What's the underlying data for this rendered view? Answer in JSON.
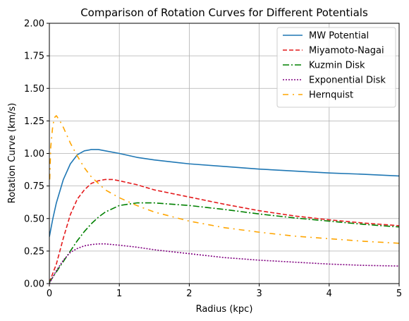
{
  "chart_data": {
    "type": "line",
    "title": "Comparison of Rotation Curves for Different Potentials",
    "xlabel": "Radius (kpc)",
    "ylabel": "Rotation Curve (km/s)",
    "xlim": [
      0,
      5
    ],
    "ylim": [
      0,
      2
    ],
    "xticks": [
      0,
      1,
      2,
      3,
      4,
      5
    ],
    "xtick_labels": [
      "0",
      "1",
      "2",
      "3",
      "4",
      "5"
    ],
    "yticks": [
      0,
      0.25,
      0.5,
      0.75,
      1.0,
      1.25,
      1.5,
      1.75,
      2.0
    ],
    "ytick_labels": [
      "0.00",
      "0.25",
      "0.50",
      "0.75",
      "1.00",
      "1.25",
      "1.50",
      "1.75",
      "2.00"
    ],
    "grid": true,
    "legend_position": "top-right",
    "series": [
      {
        "name": "MW Potential",
        "color": "#1f77b4",
        "style": "solid",
        "x": [
          0,
          0.05,
          0.1,
          0.2,
          0.3,
          0.4,
          0.5,
          0.6,
          0.65,
          0.7,
          0.8,
          1.0,
          1.25,
          1.5,
          2.0,
          2.5,
          3.0,
          3.5,
          4.0,
          4.5,
          5.0
        ],
        "y": [
          0.36,
          0.5,
          0.62,
          0.8,
          0.92,
          0.99,
          1.02,
          1.03,
          1.03,
          1.03,
          1.02,
          1.0,
          0.97,
          0.95,
          0.92,
          0.9,
          0.88,
          0.865,
          0.85,
          0.84,
          0.827
        ]
      },
      {
        "name": "Miyamoto-Nagai",
        "color": "#e41a1c",
        "style": "dashed",
        "x": [
          0,
          0.1,
          0.2,
          0.3,
          0.4,
          0.5,
          0.6,
          0.7,
          0.8,
          0.9,
          1.0,
          1.25,
          1.5,
          2.0,
          2.5,
          3.0,
          3.5,
          4.0,
          4.5,
          5.0
        ],
        "y": [
          0.01,
          0.15,
          0.35,
          0.53,
          0.65,
          0.72,
          0.77,
          0.79,
          0.8,
          0.8,
          0.79,
          0.76,
          0.72,
          0.665,
          0.61,
          0.56,
          0.52,
          0.49,
          0.465,
          0.445
        ]
      },
      {
        "name": "Kuzmin Disk",
        "color": "#008000",
        "style": "dashdot",
        "x": [
          0,
          0.1,
          0.2,
          0.3,
          0.4,
          0.5,
          0.6,
          0.7,
          0.8,
          1.0,
          1.25,
          1.5,
          1.75,
          2.0,
          2.5,
          3.0,
          3.5,
          4.0,
          4.5,
          5.0
        ],
        "y": [
          0.01,
          0.09,
          0.17,
          0.25,
          0.33,
          0.4,
          0.46,
          0.51,
          0.55,
          0.6,
          0.62,
          0.62,
          0.61,
          0.6,
          0.57,
          0.535,
          0.505,
          0.48,
          0.455,
          0.435
        ]
      },
      {
        "name": "Exponential Disk",
        "color": "#800080",
        "style": "dotted",
        "x": [
          0,
          0.1,
          0.2,
          0.3,
          0.4,
          0.5,
          0.6,
          0.7,
          0.8,
          0.9,
          1.0,
          1.25,
          1.5,
          2.0,
          2.5,
          3.0,
          3.5,
          4.0,
          4.5,
          5.0
        ],
        "y": [
          0.0,
          0.1,
          0.18,
          0.24,
          0.27,
          0.29,
          0.3,
          0.305,
          0.305,
          0.3,
          0.295,
          0.28,
          0.26,
          0.23,
          0.2,
          0.18,
          0.165,
          0.15,
          0.14,
          0.135
        ]
      },
      {
        "name": "Hernquist",
        "color": "#ffa500",
        "style": "dashdot-sparse",
        "x": [
          0.005,
          0.02,
          0.05,
          0.08,
          0.1,
          0.15,
          0.2,
          0.3,
          0.4,
          0.5,
          0.6,
          0.8,
          1.0,
          1.25,
          1.5,
          2.0,
          2.5,
          3.0,
          3.5,
          4.0,
          4.5,
          5.0
        ],
        "y": [
          0.8,
          1.05,
          1.22,
          1.28,
          1.29,
          1.25,
          1.2,
          1.08,
          0.98,
          0.89,
          0.82,
          0.72,
          0.66,
          0.6,
          0.55,
          0.48,
          0.43,
          0.395,
          0.365,
          0.345,
          0.325,
          0.31
        ]
      }
    ]
  }
}
